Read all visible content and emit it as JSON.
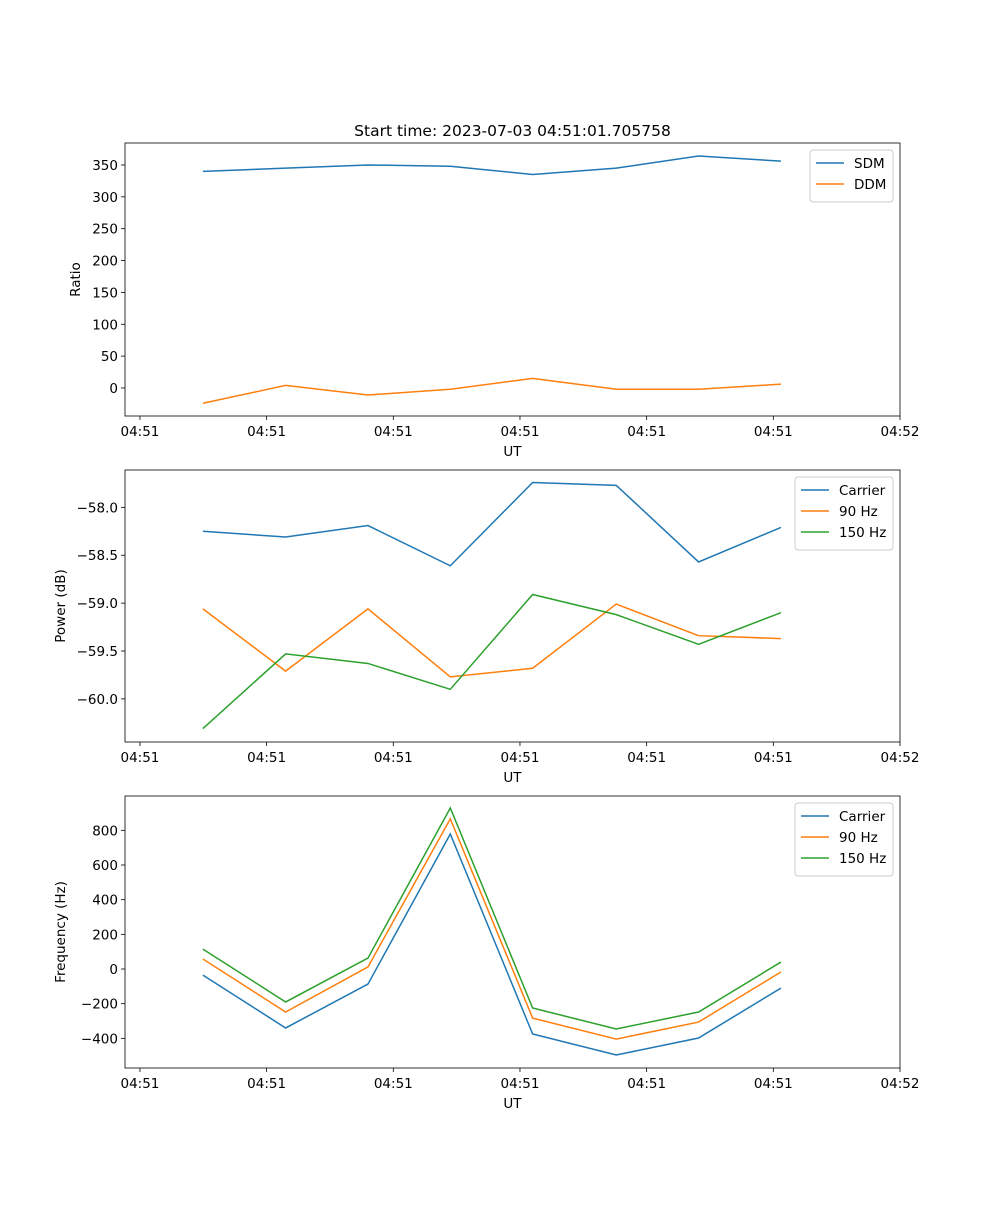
{
  "chart_data": [
    {
      "type": "line",
      "title": "Start time: 2023-07-03 04:51:01.705758",
      "xlabel": "UT",
      "ylabel": "Ratio",
      "x": [
        4.97,
        11.5,
        18.0,
        24.5,
        31.0,
        37.6,
        44.1,
        50.6
      ],
      "xlim": [
        -1.18,
        60
      ],
      "xticks": [
        0,
        10,
        20,
        30,
        40,
        50,
        60
      ],
      "xtick_labels": [
        "04:51",
        "04:51",
        "04:51",
        "04:51",
        "04:51",
        "04:51",
        "04:52"
      ],
      "ylim": [
        -44,
        384.5
      ],
      "yticks": [
        0,
        50,
        100,
        150,
        200,
        250,
        300,
        350
      ],
      "ytick_labels": [
        "0",
        "50",
        "100",
        "150",
        "200",
        "250",
        "300",
        "350"
      ],
      "legend": "top-right",
      "series": [
        {
          "name": "SDM",
          "color": "#1f77b4",
          "values": [
            340,
            345,
            350,
            348,
            335,
            345,
            364,
            356
          ]
        },
        {
          "name": "DDM",
          "color": "#ff7f0e",
          "values": [
            -24,
            4,
            -11,
            -2,
            15,
            -2,
            -2,
            6
          ]
        }
      ]
    },
    {
      "type": "line",
      "title": "",
      "xlabel": "UT",
      "ylabel": "Power (dB)",
      "x": [
        4.97,
        11.5,
        18.0,
        24.5,
        31.0,
        37.6,
        44.1,
        50.6
      ],
      "xlim": [
        -1.18,
        60
      ],
      "xticks": [
        0,
        10,
        20,
        30,
        40,
        50,
        60
      ],
      "xtick_labels": [
        "04:51",
        "04:51",
        "04:51",
        "04:51",
        "04:51",
        "04:51",
        "04:52"
      ],
      "ylim": [
        -60.45,
        -57.61
      ],
      "yticks": [
        -60.0,
        -59.5,
        -59.0,
        -58.5,
        -58.0
      ],
      "ytick_labels": [
        "−60.0",
        "−59.5",
        "−59.0",
        "−58.5",
        "−58.0"
      ],
      "legend": "top-right",
      "series": [
        {
          "name": "Carrier",
          "color": "#1f77b4",
          "values": [
            -58.25,
            -58.31,
            -58.19,
            -58.61,
            -57.74,
            -57.77,
            -58.57,
            -58.21
          ]
        },
        {
          "name": "90 Hz",
          "color": "#ff7f0e",
          "values": [
            -59.06,
            -59.71,
            -59.06,
            -59.77,
            -59.68,
            -59.01,
            -59.34,
            -59.37
          ]
        },
        {
          "name": "150 Hz",
          "color": "#2ca02c",
          "values": [
            -60.31,
            -59.53,
            -59.63,
            -59.9,
            -58.91,
            -59.12,
            -59.43,
            -59.1
          ]
        }
      ]
    },
    {
      "type": "line",
      "title": "",
      "xlabel": "UT",
      "ylabel": "Frequency (Hz)",
      "x": [
        4.97,
        11.5,
        18.0,
        24.5,
        31.0,
        37.6,
        44.1,
        50.6
      ],
      "xlim": [
        -1.18,
        60
      ],
      "xticks": [
        0,
        10,
        20,
        30,
        40,
        50,
        60
      ],
      "xtick_labels": [
        "04:51",
        "04:51",
        "04:51",
        "04:51",
        "04:51",
        "04:51",
        "04:52"
      ],
      "ylim": [
        -571,
        998
      ],
      "yticks": [
        -400,
        -200,
        0,
        200,
        400,
        600,
        800
      ],
      "ytick_labels": [
        "−400",
        "−200",
        "0",
        "200",
        "400",
        "600",
        "800"
      ],
      "legend": "top-right",
      "series": [
        {
          "name": "Carrier",
          "color": "#1f77b4",
          "values": [
            -35,
            -340,
            -87,
            779,
            -375,
            -496,
            -398,
            -110
          ]
        },
        {
          "name": "90 Hz",
          "color": "#ff7f0e",
          "values": [
            58,
            -248,
            12,
            866,
            -283,
            -404,
            -306,
            -17
          ]
        },
        {
          "name": "150 Hz",
          "color": "#2ca02c",
          "values": [
            115,
            -190,
            63,
            929,
            -225,
            -346,
            -248,
            40
          ]
        }
      ]
    }
  ]
}
